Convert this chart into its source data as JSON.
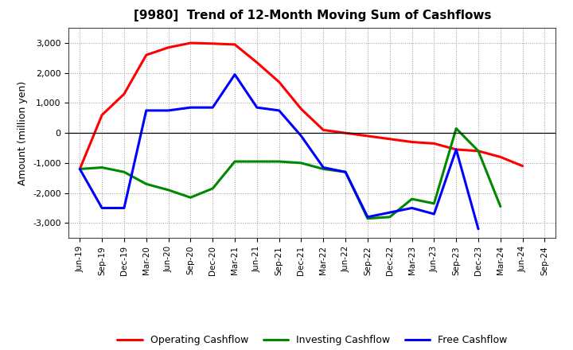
{
  "title": "[9980]  Trend of 12-Month Moving Sum of Cashflows",
  "ylabel": "Amount (million yen)",
  "background_color": "#ffffff",
  "plot_background_color": "#ffffff",
  "grid_color": "#999999",
  "x_labels": [
    "Jun-19",
    "Sep-19",
    "Dec-19",
    "Mar-20",
    "Jun-20",
    "Sep-20",
    "Dec-20",
    "Mar-21",
    "Jun-21",
    "Sep-21",
    "Dec-21",
    "Mar-22",
    "Jun-22",
    "Sep-22",
    "Dec-22",
    "Mar-23",
    "Jun-23",
    "Sep-23",
    "Dec-23",
    "Mar-24",
    "Jun-24",
    "Sep-24"
  ],
  "operating_cashflow": [
    -1200,
    600,
    1300,
    2600,
    2850,
    3000,
    2980,
    2950,
    2350,
    1700,
    800,
    100,
    0,
    -100,
    -200,
    -300,
    -350,
    -550,
    -600,
    -800,
    -1100,
    null
  ],
  "investing_cashflow": [
    -1200,
    -1150,
    -1300,
    -1700,
    -1900,
    -2150,
    -1850,
    -950,
    -950,
    -950,
    -1000,
    -1200,
    -1300,
    -2850,
    -2800,
    -2200,
    -2350,
    150,
    -600,
    -2450,
    null,
    null
  ],
  "free_cashflow": [
    -1200,
    -2500,
    -2500,
    750,
    750,
    850,
    850,
    1950,
    850,
    750,
    -100,
    -1150,
    -1300,
    -2800,
    -2650,
    -2500,
    -2700,
    -550,
    -3200,
    null,
    null,
    null
  ],
  "ylim": [
    -3500,
    3500
  ],
  "yticks": [
    -3000,
    -2000,
    -1000,
    0,
    1000,
    2000,
    3000
  ],
  "line_colors": {
    "operating": "#ff0000",
    "investing": "#008800",
    "free": "#0000ff"
  },
  "line_width": 2.2,
  "legend_labels": [
    "Operating Cashflow",
    "Investing Cashflow",
    "Free Cashflow"
  ]
}
